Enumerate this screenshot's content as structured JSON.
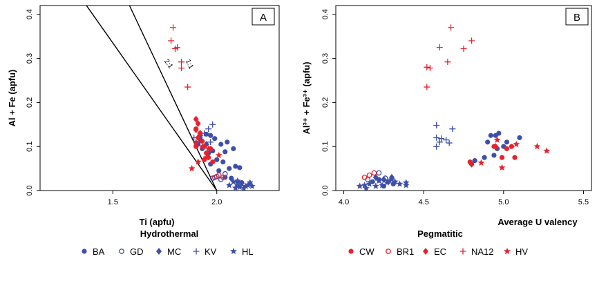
{
  "colors": {
    "hydrothermal": "#3d4fa8",
    "pegmatitic": "#e8212b"
  },
  "chart_data": [
    {
      "type": "scatter",
      "panel_label": "A",
      "xlabel": "Ti (apfu)",
      "ylabel": "Al + Fe (apfu)",
      "xlim": [
        1.15,
        2.3
      ],
      "ylim": [
        0,
        0.42
      ],
      "xticks": [
        {
          "v": 1.5,
          "label": "1.5"
        },
        {
          "v": 2.0,
          "label": "2.0"
        }
      ],
      "yticks": [
        {
          "v": 0,
          "label": "0.0"
        },
        {
          "v": 0.1,
          "label": "0.1"
        },
        {
          "v": 0.2,
          "label": "0.2"
        },
        {
          "v": 0.3,
          "label": "0.3"
        },
        {
          "v": 0.4,
          "label": "0.4"
        }
      ],
      "reference_lines": [
        {
          "label": "2:1",
          "x1": 1.0,
          "y1": 0.67,
          "x2": 2.0,
          "y2": 0.0,
          "label_x": 1.76,
          "label_y": 0.285
        },
        {
          "label": "1:1",
          "x1": 1.58,
          "y1": 0.42,
          "x2": 2.0,
          "y2": 0.0,
          "label_x": 1.86,
          "label_y": 0.285
        }
      ],
      "series": [
        {
          "name": "BA",
          "marker": "dot",
          "group": "hydrothermal",
          "points": [
            [
              1.92,
              0.12
            ],
            [
              1.95,
              0.128
            ],
            [
              1.97,
              0.125
            ],
            [
              1.99,
              0.118
            ],
            [
              2.02,
              0.105
            ],
            [
              2.05,
              0.11
            ],
            [
              1.93,
              0.095
            ],
            [
              1.96,
              0.085
            ],
            [
              1.98,
              0.09
            ],
            [
              2.0,
              0.07
            ],
            [
              2.03,
              0.065
            ],
            [
              2.01,
              0.045
            ],
            [
              2.06,
              0.05
            ],
            [
              2.09,
              0.055
            ],
            [
              2.11,
              0.052
            ],
            [
              1.97,
              0.06
            ],
            [
              2.04,
              0.03
            ],
            [
              2.07,
              0.028
            ],
            [
              2.1,
              0.02
            ],
            [
              2.12,
              0.018
            ],
            [
              1.91,
              0.105
            ],
            [
              2.08,
              0.095
            ],
            [
              2.04,
              0.088
            ]
          ]
        },
        {
          "name": "GD",
          "marker": "circle",
          "group": "hydrothermal",
          "points": [
            [
              1.98,
              0.028
            ],
            [
              2.0,
              0.032
            ],
            [
              2.04,
              0.038
            ],
            [
              2.02,
              0.025
            ]
          ]
        },
        {
          "name": "MC",
          "marker": "diamond",
          "group": "hydrothermal",
          "points": [
            [
              1.92,
              0.115
            ],
            [
              1.95,
              0.105
            ]
          ]
        },
        {
          "name": "KV",
          "marker": "plus",
          "group": "hydrothermal",
          "points": [
            [
              1.92,
              0.125
            ],
            [
              1.96,
              0.14
            ],
            [
              1.98,
              0.15
            ],
            [
              1.94,
              0.13
            ],
            [
              1.89,
              0.12
            ],
            [
              1.97,
              0.11
            ]
          ]
        },
        {
          "name": "HL",
          "marker": "star",
          "group": "hydrothermal",
          "points": [
            [
              2.08,
              0.02
            ],
            [
              2.1,
              0.012
            ],
            [
              2.12,
              0.015
            ],
            [
              2.14,
              0.01
            ],
            [
              2.16,
              0.018
            ],
            [
              2.11,
              0.008
            ],
            [
              2.13,
              0.005
            ],
            [
              2.09,
              0.006
            ],
            [
              2.15,
              0.012
            ],
            [
              2.17,
              0.01
            ],
            [
              2.06,
              0.012
            ],
            [
              2.1,
              0.022
            ]
          ]
        },
        {
          "name": "CW",
          "marker": "dot",
          "group": "pegmatitic",
          "points": [
            [
              1.9,
              0.14
            ],
            [
              1.92,
              0.13
            ],
            [
              1.94,
              0.1
            ],
            [
              1.95,
              0.085
            ],
            [
              1.96,
              0.075
            ],
            [
              1.98,
              0.065
            ],
            [
              1.93,
              0.112
            ],
            [
              1.9,
              0.1
            ],
            [
              1.97,
              0.095
            ],
            [
              1.94,
              0.07
            ]
          ]
        },
        {
          "name": "BR1",
          "marker": "circle",
          "group": "pegmatitic",
          "points": [
            [
              1.99,
              0.03
            ],
            [
              2.01,
              0.035
            ],
            [
              2.03,
              0.03
            ]
          ]
        },
        {
          "name": "EC",
          "marker": "diamond",
          "group": "pegmatitic",
          "points": [
            [
              1.9,
              0.162
            ],
            [
              1.91,
              0.152
            ],
            [
              1.9,
              0.138
            ],
            [
              1.92,
              0.13
            ],
            [
              1.91,
              0.12
            ]
          ]
        },
        {
          "name": "NA12",
          "marker": "plus",
          "group": "pegmatitic",
          "points": [
            [
              1.79,
              0.37
            ],
            [
              1.78,
              0.34
            ],
            [
              1.8,
              0.322
            ],
            [
              1.81,
              0.325
            ],
            [
              1.83,
              0.292
            ],
            [
              1.83,
              0.278
            ],
            [
              1.86,
              0.235
            ]
          ]
        },
        {
          "name": "HV",
          "marker": "star",
          "group": "pegmatitic",
          "points": [
            [
              1.88,
              0.05
            ],
            [
              1.91,
              0.065
            ],
            [
              1.95,
              0.075
            ],
            [
              1.9,
              0.11
            ],
            [
              1.96,
              0.095
            ],
            [
              2.01,
              0.08
            ],
            [
              1.93,
              0.1
            ]
          ]
        }
      ]
    },
    {
      "type": "scatter",
      "panel_label": "B",
      "xlabel": "Average U valency",
      "ylabel": "Al³⁺ + Fe³⁺ (apfu)",
      "xlim": [
        3.95,
        5.55
      ],
      "ylim": [
        0,
        0.42
      ],
      "xticks": [
        {
          "v": 4.0,
          "label": "4.0"
        },
        {
          "v": 4.5,
          "label": "4.5"
        },
        {
          "v": 5.0,
          "label": "5.0"
        },
        {
          "v": 5.5,
          "label": "5.5"
        }
      ],
      "yticks": [
        {
          "v": 0,
          "label": "0.0"
        },
        {
          "v": 0.1,
          "label": "0.1"
        },
        {
          "v": 0.2,
          "label": "0.2"
        },
        {
          "v": 0.3,
          "label": "0.3"
        },
        {
          "v": 0.4,
          "label": "0.4"
        }
      ],
      "series": [
        {
          "name": "BA",
          "marker": "dot",
          "group": "hydrothermal",
          "points": [
            [
              4.8,
              0.06
            ],
            [
              4.82,
              0.068
            ],
            [
              4.88,
              0.075
            ],
            [
              4.9,
              0.11
            ],
            [
              4.92,
              0.125
            ],
            [
              4.95,
              0.125
            ],
            [
              4.97,
              0.13
            ],
            [
              5.02,
              0.11
            ],
            [
              5.1,
              0.12
            ],
            [
              4.94,
              0.08
            ],
            [
              4.96,
              0.095
            ],
            [
              5.0,
              0.1
            ],
            [
              4.18,
              0.02
            ],
            [
              4.22,
              0.025
            ],
            [
              4.28,
              0.02
            ],
            [
              4.31,
              0.015
            ],
            [
              4.25,
              0.01
            ]
          ]
        },
        {
          "name": "GD",
          "marker": "circle",
          "group": "hydrothermal",
          "points": [
            [
              4.15,
              0.025
            ],
            [
              4.22,
              0.04
            ],
            [
              4.26,
              0.028
            ]
          ]
        },
        {
          "name": "MC",
          "marker": "diamond",
          "group": "hydrothermal",
          "points": [
            [
              4.2,
              0.03
            ],
            [
              4.25,
              0.025
            ],
            [
              4.3,
              0.03
            ]
          ]
        },
        {
          "name": "KV",
          "marker": "plus",
          "group": "hydrothermal",
          "points": [
            [
              4.58,
              0.148
            ],
            [
              4.58,
              0.12
            ],
            [
              4.61,
              0.118
            ],
            [
              4.64,
              0.115
            ],
            [
              4.66,
              0.108
            ],
            [
              4.68,
              0.14
            ],
            [
              4.58,
              0.1
            ],
            [
              4.6,
              0.11
            ]
          ]
        },
        {
          "name": "HL",
          "marker": "star",
          "group": "hydrothermal",
          "points": [
            [
              4.1,
              0.01
            ],
            [
              4.13,
              0.012
            ],
            [
              4.16,
              0.015
            ],
            [
              4.2,
              0.01
            ],
            [
              4.24,
              0.012
            ],
            [
              4.27,
              0.018
            ],
            [
              4.32,
              0.02
            ],
            [
              4.35,
              0.015
            ],
            [
              4.39,
              0.012
            ],
            [
              4.14,
              0.005
            ],
            [
              4.3,
              0.025
            ],
            [
              4.22,
              0.022
            ],
            [
              4.39,
              0.018
            ]
          ]
        },
        {
          "name": "CW",
          "marker": "dot",
          "group": "pegmatitic",
          "points": [
            [
              4.79,
              0.065
            ],
            [
              4.99,
              0.075
            ],
            [
              5.02,
              0.095
            ],
            [
              5.05,
              0.1
            ],
            [
              5.07,
              0.075
            ],
            [
              4.94,
              0.1
            ]
          ]
        },
        {
          "name": "BR1",
          "marker": "circle",
          "group": "pegmatitic",
          "points": [
            [
              4.13,
              0.03
            ],
            [
              4.16,
              0.035
            ],
            [
              4.19,
              0.04
            ]
          ]
        },
        {
          "name": "EC",
          "marker": "diamond",
          "group": "pegmatitic",
          "points": [
            [
              4.8,
              0.06
            ],
            [
              4.95,
              0.1
            ]
          ]
        },
        {
          "name": "NA12",
          "marker": "plus",
          "group": "pegmatitic",
          "points": [
            [
              4.67,
              0.37
            ],
            [
              4.8,
              0.34
            ],
            [
              4.6,
              0.325
            ],
            [
              4.75,
              0.322
            ],
            [
              4.65,
              0.292
            ],
            [
              4.52,
              0.28
            ],
            [
              4.54,
              0.278
            ],
            [
              4.52,
              0.235
            ]
          ]
        },
        {
          "name": "HV",
          "marker": "star",
          "group": "pegmatitic",
          "points": [
            [
              4.86,
              0.063
            ],
            [
              4.96,
              0.115
            ],
            [
              4.99,
              0.052
            ],
            [
              5.08,
              0.105
            ],
            [
              5.21,
              0.1
            ],
            [
              5.27,
              0.09
            ]
          ]
        }
      ]
    }
  ],
  "legend": {
    "hydrothermal": {
      "title": "Hydrothermal",
      "items": [
        {
          "label": "BA",
          "marker": "dot"
        },
        {
          "label": "GD",
          "marker": "circle"
        },
        {
          "label": "MC",
          "marker": "diamond"
        },
        {
          "label": "KV",
          "marker": "plus"
        },
        {
          "label": "HL",
          "marker": "star"
        }
      ]
    },
    "pegmatitic": {
      "title": "Pegmatitic",
      "items": [
        {
          "label": "CW",
          "marker": "dot"
        },
        {
          "label": "BR1",
          "marker": "circle"
        },
        {
          "label": "EC",
          "marker": "diamond"
        },
        {
          "label": "NA12",
          "marker": "plus"
        },
        {
          "label": "HV",
          "marker": "star"
        }
      ]
    }
  }
}
